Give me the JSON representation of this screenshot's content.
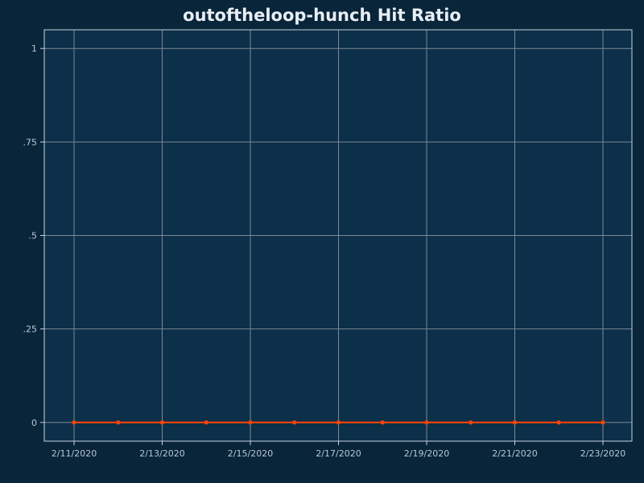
{
  "chart_data": {
    "type": "line",
    "title": "outoftheloop-hunch Hit Ratio",
    "xlabel": "",
    "ylabel": "",
    "x": [
      "2/11/2020",
      "2/12/2020",
      "2/13/2020",
      "2/14/2020",
      "2/15/2020",
      "2/16/2020",
      "2/17/2020",
      "2/18/2020",
      "2/19/2020",
      "2/20/2020",
      "2/21/2020",
      "2/22/2020",
      "2/23/2020"
    ],
    "x_tick_labels": [
      "2/11/2020",
      "2/13/2020",
      "2/15/2020",
      "2/17/2020",
      "2/19/2020",
      "2/21/2020",
      "2/23/2020"
    ],
    "ylim": [
      -0.05,
      1.05
    ],
    "y_ticks": [
      0,
      0.25,
      0.5,
      0.75,
      1
    ],
    "y_tick_labels": [
      "0",
      ".25",
      ".5",
      ".75",
      "1"
    ],
    "series": [
      {
        "values": [
          0,
          0,
          0,
          0,
          0,
          0,
          0,
          0,
          0,
          0,
          0,
          0,
          0
        ],
        "color": "#ff4500"
      }
    ],
    "grid": true,
    "legend": "none",
    "colors": {
      "background": "#08253a",
      "plot_background": "#0c2f4a",
      "grid": "#7d8891",
      "border": "#c8d3dc",
      "text": "#b9c7d4",
      "title": "#e8eef4"
    }
  }
}
